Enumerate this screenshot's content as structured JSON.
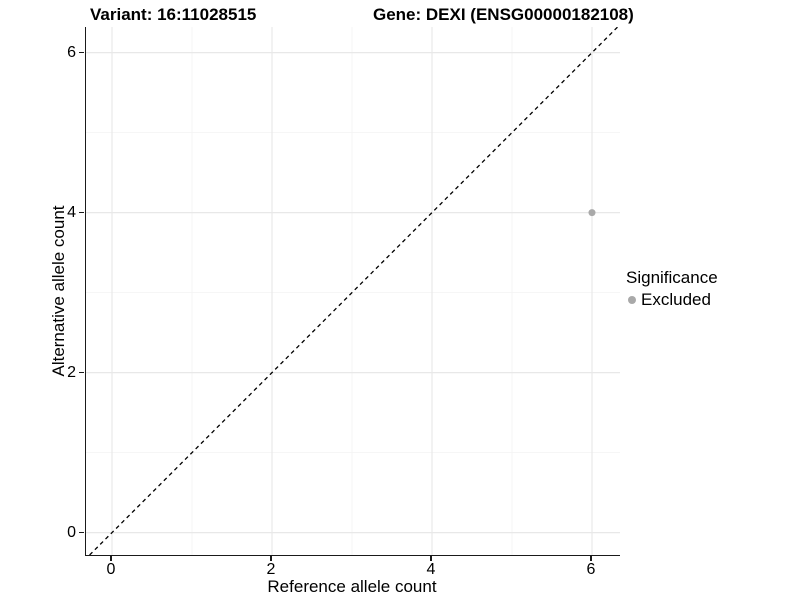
{
  "header": {
    "variant_title": "Variant: 16:11028515",
    "gene_title": "Gene: DEXI (ENSG00000182108)"
  },
  "chart_data": {
    "type": "scatter",
    "title_left": "Variant: 16:11028515",
    "title_right": "Gene: DEXI (ENSG00000182108)",
    "xlabel": "Reference allele count",
    "ylabel": "Alternative allele count",
    "xlim": [
      -0.325,
      6.35
    ],
    "ylim": [
      -0.28,
      6.32
    ],
    "x_ticks": [
      0,
      2,
      4,
      6
    ],
    "y_ticks": [
      0,
      2,
      4,
      6
    ],
    "x_tick_labels": [
      "0",
      "2",
      "4",
      "6"
    ],
    "y_tick_labels": [
      "0",
      "2",
      "4",
      "6"
    ],
    "minor_gridlines": [
      1,
      3,
      5
    ],
    "grid": true,
    "identity_line": {
      "type": "dashed",
      "slope": 1,
      "intercept": 0
    },
    "series": [
      {
        "name": "Excluded",
        "points": [
          {
            "x": 6,
            "y": 4
          }
        ]
      }
    ],
    "legend": {
      "position": "right",
      "title": "Significance",
      "entries": [
        {
          "label": "Excluded",
          "color": "#a9a9a9"
        }
      ]
    },
    "colors": {
      "point": "#a9a9a9",
      "grid_major": "#e8e8e8",
      "grid_minor": "#f4f4f4",
      "axis": "#1a1a1a",
      "identity_line": "#000000",
      "background": "#ffffff"
    }
  }
}
